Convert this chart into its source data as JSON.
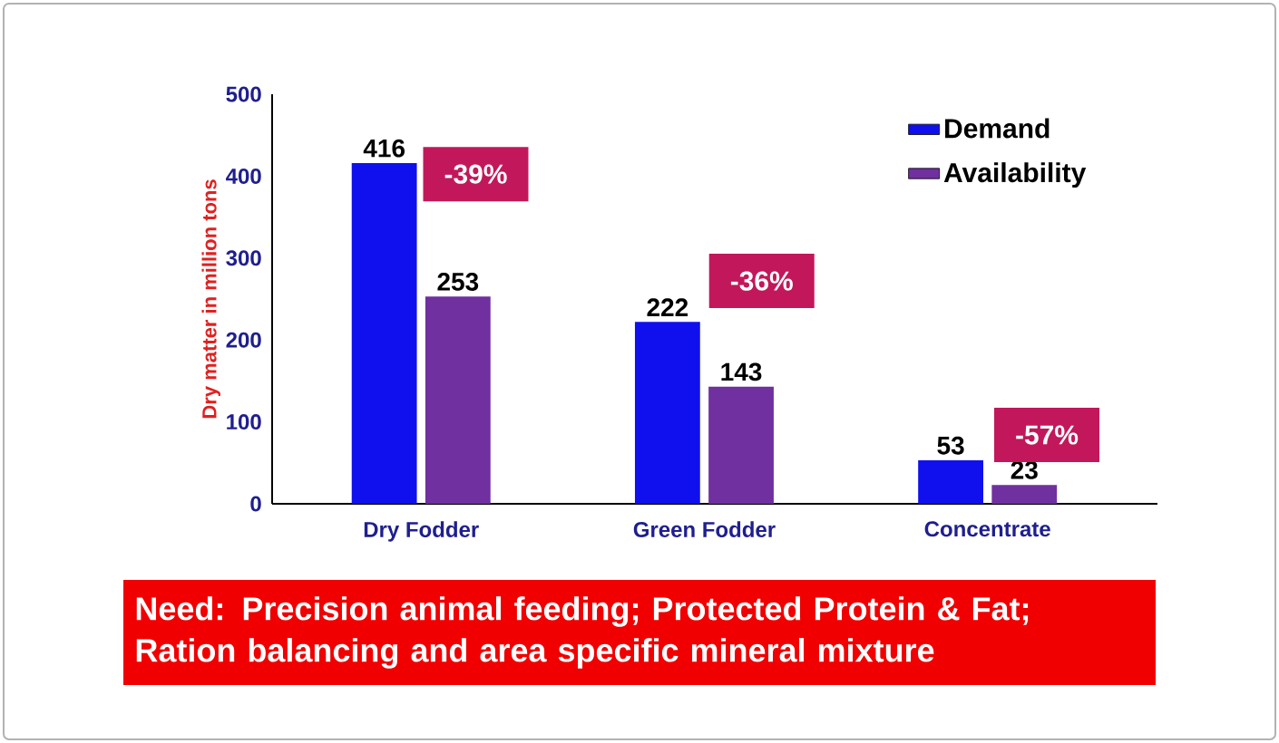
{
  "chart_data": {
    "type": "bar",
    "ylabel": "Dry matter in million tons",
    "categories": [
      "Dry Fodder",
      "Green Fodder",
      "Concentrate"
    ],
    "series": [
      {
        "name": "Demand",
        "color": "#1010ee",
        "values": [
          416,
          222,
          53
        ]
      },
      {
        "name": "Availability",
        "color": "#7030a0",
        "values": [
          253,
          143,
          23
        ]
      }
    ],
    "ylim": [
      0,
      500
    ],
    "yticks": [
      0,
      100,
      200,
      300,
      400,
      500
    ],
    "grid": false,
    "legend": "top right",
    "data_labels": true,
    "annotations": [
      "-39%",
      "-36%",
      "-57%",
      "Need: Precision animal feeding; Protected Protein & Fat; Ration balancing and area specific mineral mixture"
    ]
  }
}
